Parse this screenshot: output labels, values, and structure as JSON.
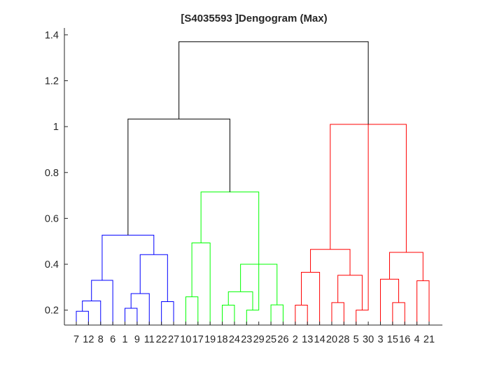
{
  "chart_data": {
    "type": "dendrogram",
    "title": "[S4035593 ]Dengogram (Max)",
    "xlabel": "",
    "ylabel": "",
    "ylim": [
      0.135,
      1.43
    ],
    "y_ticks": [
      0.2,
      0.4,
      0.6,
      0.8,
      1,
      1.2,
      1.4
    ],
    "y_tick_labels": [
      "0.2",
      "0.4",
      "0.6",
      "0.8",
      "1",
      "1.2",
      "1.4"
    ],
    "leaf_order": [
      "7",
      "12",
      "8",
      "6",
      "1",
      "9",
      "11",
      "22",
      "27",
      "10",
      "17",
      "19",
      "18",
      "24",
      "23",
      "29",
      "25",
      "26",
      "2",
      "13",
      "14",
      "20",
      "28",
      "5",
      "30",
      "3",
      "15",
      "16",
      "4",
      "21"
    ],
    "above_threshold_color": "#000000",
    "cluster_colors": {
      "blue": "#0000ff",
      "green": "#00ff00",
      "red": "#ff0000"
    },
    "links": [
      {
        "a": [
          1,
          2
        ],
        "h": 0.195,
        "color": "blue"
      },
      {
        "a": [
          1.5,
          3
        ],
        "h": 0.24,
        "color": "blue"
      },
      {
        "a": [
          2.25,
          4
        ],
        "h": 0.33,
        "color": "blue"
      },
      {
        "a": [
          5,
          6
        ],
        "h": 0.208,
        "color": "blue"
      },
      {
        "a": [
          5.5,
          7
        ],
        "h": 0.272,
        "color": "blue"
      },
      {
        "a": [
          8,
          9
        ],
        "h": 0.237,
        "color": "blue"
      },
      {
        "a": [
          6.25,
          8.5
        ],
        "h": 0.442,
        "color": "blue"
      },
      {
        "a": [
          3.125,
          7.375
        ],
        "h": 0.527,
        "color": "blue"
      },
      {
        "a": [
          10,
          11
        ],
        "h": 0.258,
        "color": "green"
      },
      {
        "a": [
          10.5,
          12
        ],
        "h": 0.493,
        "color": "green"
      },
      {
        "a": [
          13,
          14
        ],
        "h": 0.222,
        "color": "green"
      },
      {
        "a": [
          15,
          16
        ],
        "h": 0.2,
        "color": "green"
      },
      {
        "a": [
          13.5,
          15.5
        ],
        "h": 0.28,
        "color": "green"
      },
      {
        "a": [
          17,
          18
        ],
        "h": 0.223,
        "color": "green"
      },
      {
        "a": [
          14.5,
          17.5
        ],
        "h": 0.4,
        "color": "green"
      },
      {
        "a": [
          11.25,
          16
        ],
        "h": 0.715,
        "color": "green"
      },
      {
        "a": [
          19,
          20
        ],
        "h": 0.222,
        "color": "red"
      },
      {
        "a": [
          19.5,
          21
        ],
        "h": 0.365,
        "color": "red"
      },
      {
        "a": [
          22,
          23
        ],
        "h": 0.233,
        "color": "red"
      },
      {
        "a": [
          24,
          25
        ],
        "h": 0.2,
        "color": "red"
      },
      {
        "a": [
          22.5,
          24.5
        ],
        "h": 0.352,
        "color": "red"
      },
      {
        "a": [
          20.25,
          23.5
        ],
        "h": 0.465,
        "color": "red"
      },
      {
        "a": [
          27,
          28
        ],
        "h": 0.233,
        "color": "red"
      },
      {
        "a": [
          26,
          27.5
        ],
        "h": 0.335,
        "color": "red"
      },
      {
        "a": [
          29,
          30
        ],
        "h": 0.328,
        "color": "red"
      },
      {
        "a": [
          26.75,
          29.5
        ],
        "h": 0.452,
        "color": "red"
      },
      {
        "a": [
          21.875,
          28.125
        ],
        "h": 1.01,
        "color": "red"
      },
      {
        "a": [
          5.25,
          13.625
        ],
        "h": 1.033,
        "color": "black"
      },
      {
        "a": [
          9.4375,
          25
        ],
        "h": 1.37,
        "color": "black"
      }
    ],
    "grid": false,
    "legend": "none"
  }
}
